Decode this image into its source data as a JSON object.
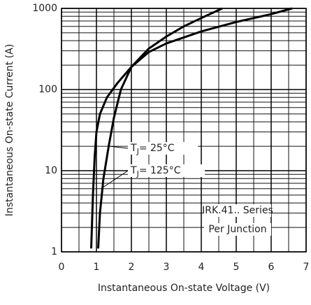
{
  "chart_data": {
    "type": "line",
    "xlabel": "Instantaneous On-state Voltage (V)",
    "ylabel": "Instantaneous On-state Current (A)",
    "xlim": [
      0,
      7
    ],
    "xticks": [
      0,
      1,
      2,
      3,
      4,
      5,
      6,
      7
    ],
    "ylim": [
      1,
      1000
    ],
    "yticks": [
      1,
      10,
      100,
      1000
    ],
    "log_y": true,
    "grid": true,
    "series": [
      {
        "label": {
          "base": "T",
          "sub": "J",
          "rest": "= 25°C"
        },
        "color": "#000000",
        "x": [
          1.05,
          1.1,
          1.2,
          1.35,
          1.5,
          1.7,
          2,
          2.5,
          3,
          3.5,
          4,
          4.6
        ],
        "values": [
          1.1,
          3,
          8,
          20,
          45,
          100,
          190,
          320,
          450,
          600,
          760,
          1000
        ]
      },
      {
        "label": {
          "base": "T",
          "sub": "J",
          "rest": "= 125°C"
        },
        "color": "#000000",
        "x": [
          0.85,
          0.9,
          0.95,
          1.0,
          1.1,
          1.3,
          1.6,
          2,
          2.5,
          3,
          4,
          5,
          6,
          6.6
        ],
        "values": [
          1.1,
          5,
          15,
          30,
          50,
          80,
          120,
          190,
          290,
          370,
          520,
          680,
          850,
          1000
        ]
      }
    ],
    "annotations": [
      "IRK.41.. Series",
      "Per Junction"
    ]
  }
}
